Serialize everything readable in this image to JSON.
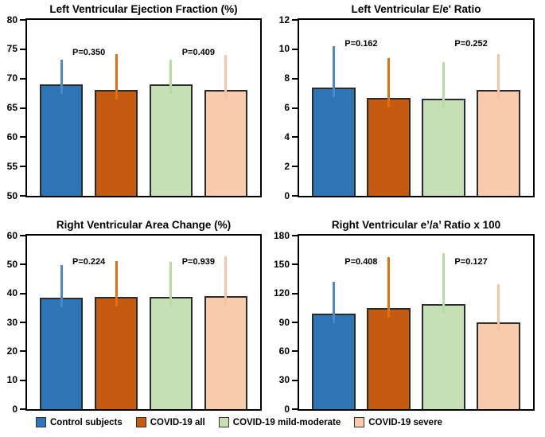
{
  "figure": {
    "background": "#ffffff"
  },
  "palette": {
    "bar_fills": [
      "#2E75B6",
      "#C55A11",
      "#C5E0B4",
      "#F8CBAD"
    ],
    "whisker_colors": [
      "#4E86C8",
      "#E3700E",
      "#B7DCA2",
      "#F5C3A0"
    ],
    "bar_border": "#2b2b2b",
    "axis_color": "#000000",
    "text_color": "#000000"
  },
  "legend": {
    "position": "bottom",
    "items": [
      {
        "label": "Control subjects",
        "color": "#2E75B6"
      },
      {
        "label": "COVID-19 all",
        "color": "#C55A11"
      },
      {
        "label": "COVID-19 mild-moderate",
        "color": "#C5E0B4"
      },
      {
        "label": "COVID-19 severe",
        "color": "#F8CBAD"
      }
    ]
  },
  "chart_data": [
    {
      "type": "bar",
      "title": "Left Ventricular Ejection Fraction (%)",
      "categories": [
        "Control subjects",
        "COVID-19 all",
        "COVID-19 mild-moderate",
        "COVID-19 severe"
      ],
      "values": [
        69,
        68,
        69,
        68
      ],
      "error_top": [
        73.2,
        74.1,
        73.2,
        74.0
      ],
      "ylim": [
        50,
        80
      ],
      "yticks": [
        50,
        55,
        60,
        65,
        70,
        75,
        80
      ],
      "grid": false,
      "annotations": [
        {
          "label": "P=0.350",
          "between_bars": [
            0,
            1
          ],
          "y": 74.3
        },
        {
          "label": "P=0.409",
          "between_bars": [
            2,
            3
          ],
          "y": 74.3
        }
      ]
    },
    {
      "type": "bar",
      "title": "Left Ventricular E/e' Ratio",
      "categories": [
        "Control subjects",
        "COVID-19 all",
        "COVID-19 mild-moderate",
        "COVID-19 severe"
      ],
      "values": [
        7.4,
        6.7,
        6.6,
        7.2
      ],
      "error_top": [
        10.2,
        9.4,
        9.1,
        9.65
      ],
      "ylim": [
        0,
        12
      ],
      "yticks": [
        0,
        2,
        4,
        6,
        8,
        10,
        12
      ],
      "grid": false,
      "annotations": [
        {
          "label": "P=0.162",
          "between_bars": [
            0,
            1
          ],
          "y": 10.35
        },
        {
          "label": "P=0.252",
          "between_bars": [
            2,
            3
          ],
          "y": 10.35
        }
      ]
    },
    {
      "type": "bar",
      "title": "Right Ventricular Area Change (%)",
      "categories": [
        "Control subjects",
        "COVID-19 all",
        "COVID-19 mild-moderate",
        "COVID-19 severe"
      ],
      "values": [
        38.5,
        38.9,
        38.9,
        39.2
      ],
      "error_top": [
        49.9,
        51.2,
        51.0,
        52.8
      ],
      "ylim": [
        0,
        60
      ],
      "yticks": [
        0,
        10,
        20,
        30,
        40,
        50,
        60
      ],
      "grid": false,
      "annotations": [
        {
          "label": "P=0.224",
          "between_bars": [
            0,
            1
          ],
          "y": 50.9
        },
        {
          "label": "P=0.939",
          "between_bars": [
            2,
            3
          ],
          "y": 50.9
        }
      ]
    },
    {
      "type": "bar",
      "title": "Right Ventricular e’/a’ Ratio x 100",
      "categories": [
        "Control subjects",
        "COVID-19 all",
        "COVID-19 mild-moderate",
        "COVID-19 severe"
      ],
      "values": [
        99,
        105,
        109,
        90
      ],
      "error_top": [
        132,
        158,
        162,
        130
      ],
      "ylim": [
        0,
        180
      ],
      "yticks": [
        0,
        30,
        60,
        90,
        120,
        150,
        180
      ],
      "grid": false,
      "annotations": [
        {
          "label": "P=0.408",
          "between_bars": [
            0,
            1
          ],
          "y": 152
        },
        {
          "label": "P=0.127",
          "between_bars": [
            2,
            3
          ],
          "y": 152
        }
      ]
    }
  ]
}
